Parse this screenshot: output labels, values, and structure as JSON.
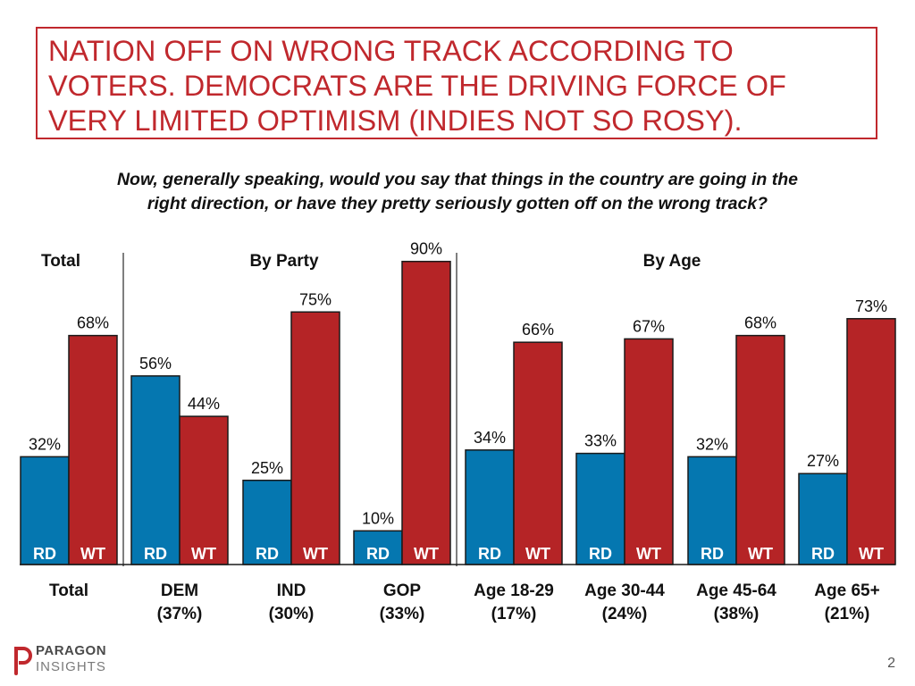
{
  "title_lines": [
    "NATION OFF ON WRONG TRACK ACCORDING TO",
    "VOTERS. DEMOCRATS ARE THE DRIVING FORCE OF",
    "VERY LIMITED OPTIMISM (INDIES NOT SO ROSY)."
  ],
  "question_lines": [
    "Now, generally speaking, would you say that things in the country are going in the",
    "right direction, or have they pretty seriously gotten off on the wrong track?"
  ],
  "page_number": "2",
  "logo": {
    "line1": "PARAGON",
    "line2": "INSIGHTS"
  },
  "colors": {
    "rd": "#0577b0",
    "wt": "#b52426",
    "title": "#c0282d",
    "divider": "#555555"
  },
  "chart_data": {
    "type": "bar",
    "title": "",
    "xlabel": "",
    "ylabel": "",
    "ylim": [
      0,
      100
    ],
    "grid": false,
    "section_headers": [
      "Total",
      "By Party",
      "By Age"
    ],
    "bar_labels": [
      "RD",
      "WT"
    ],
    "categories": [
      {
        "name": "Total",
        "sub": ""
      },
      {
        "name": "DEM",
        "sub": "(37%)"
      },
      {
        "name": "IND",
        "sub": "(30%)"
      },
      {
        "name": "GOP",
        "sub": "(33%)"
      },
      {
        "name": "Age 18-29",
        "sub": "(17%)"
      },
      {
        "name": "Age 30-44",
        "sub": "(24%)"
      },
      {
        "name": "Age 45-64",
        "sub": "(38%)"
      },
      {
        "name": "Age 65+",
        "sub": "(21%)"
      }
    ],
    "series": [
      {
        "values": [
          32,
          56,
          25,
          10,
          34,
          33,
          32,
          27
        ]
      },
      {
        "values": [
          68,
          44,
          75,
          90,
          66,
          67,
          68,
          73
        ]
      }
    ]
  }
}
